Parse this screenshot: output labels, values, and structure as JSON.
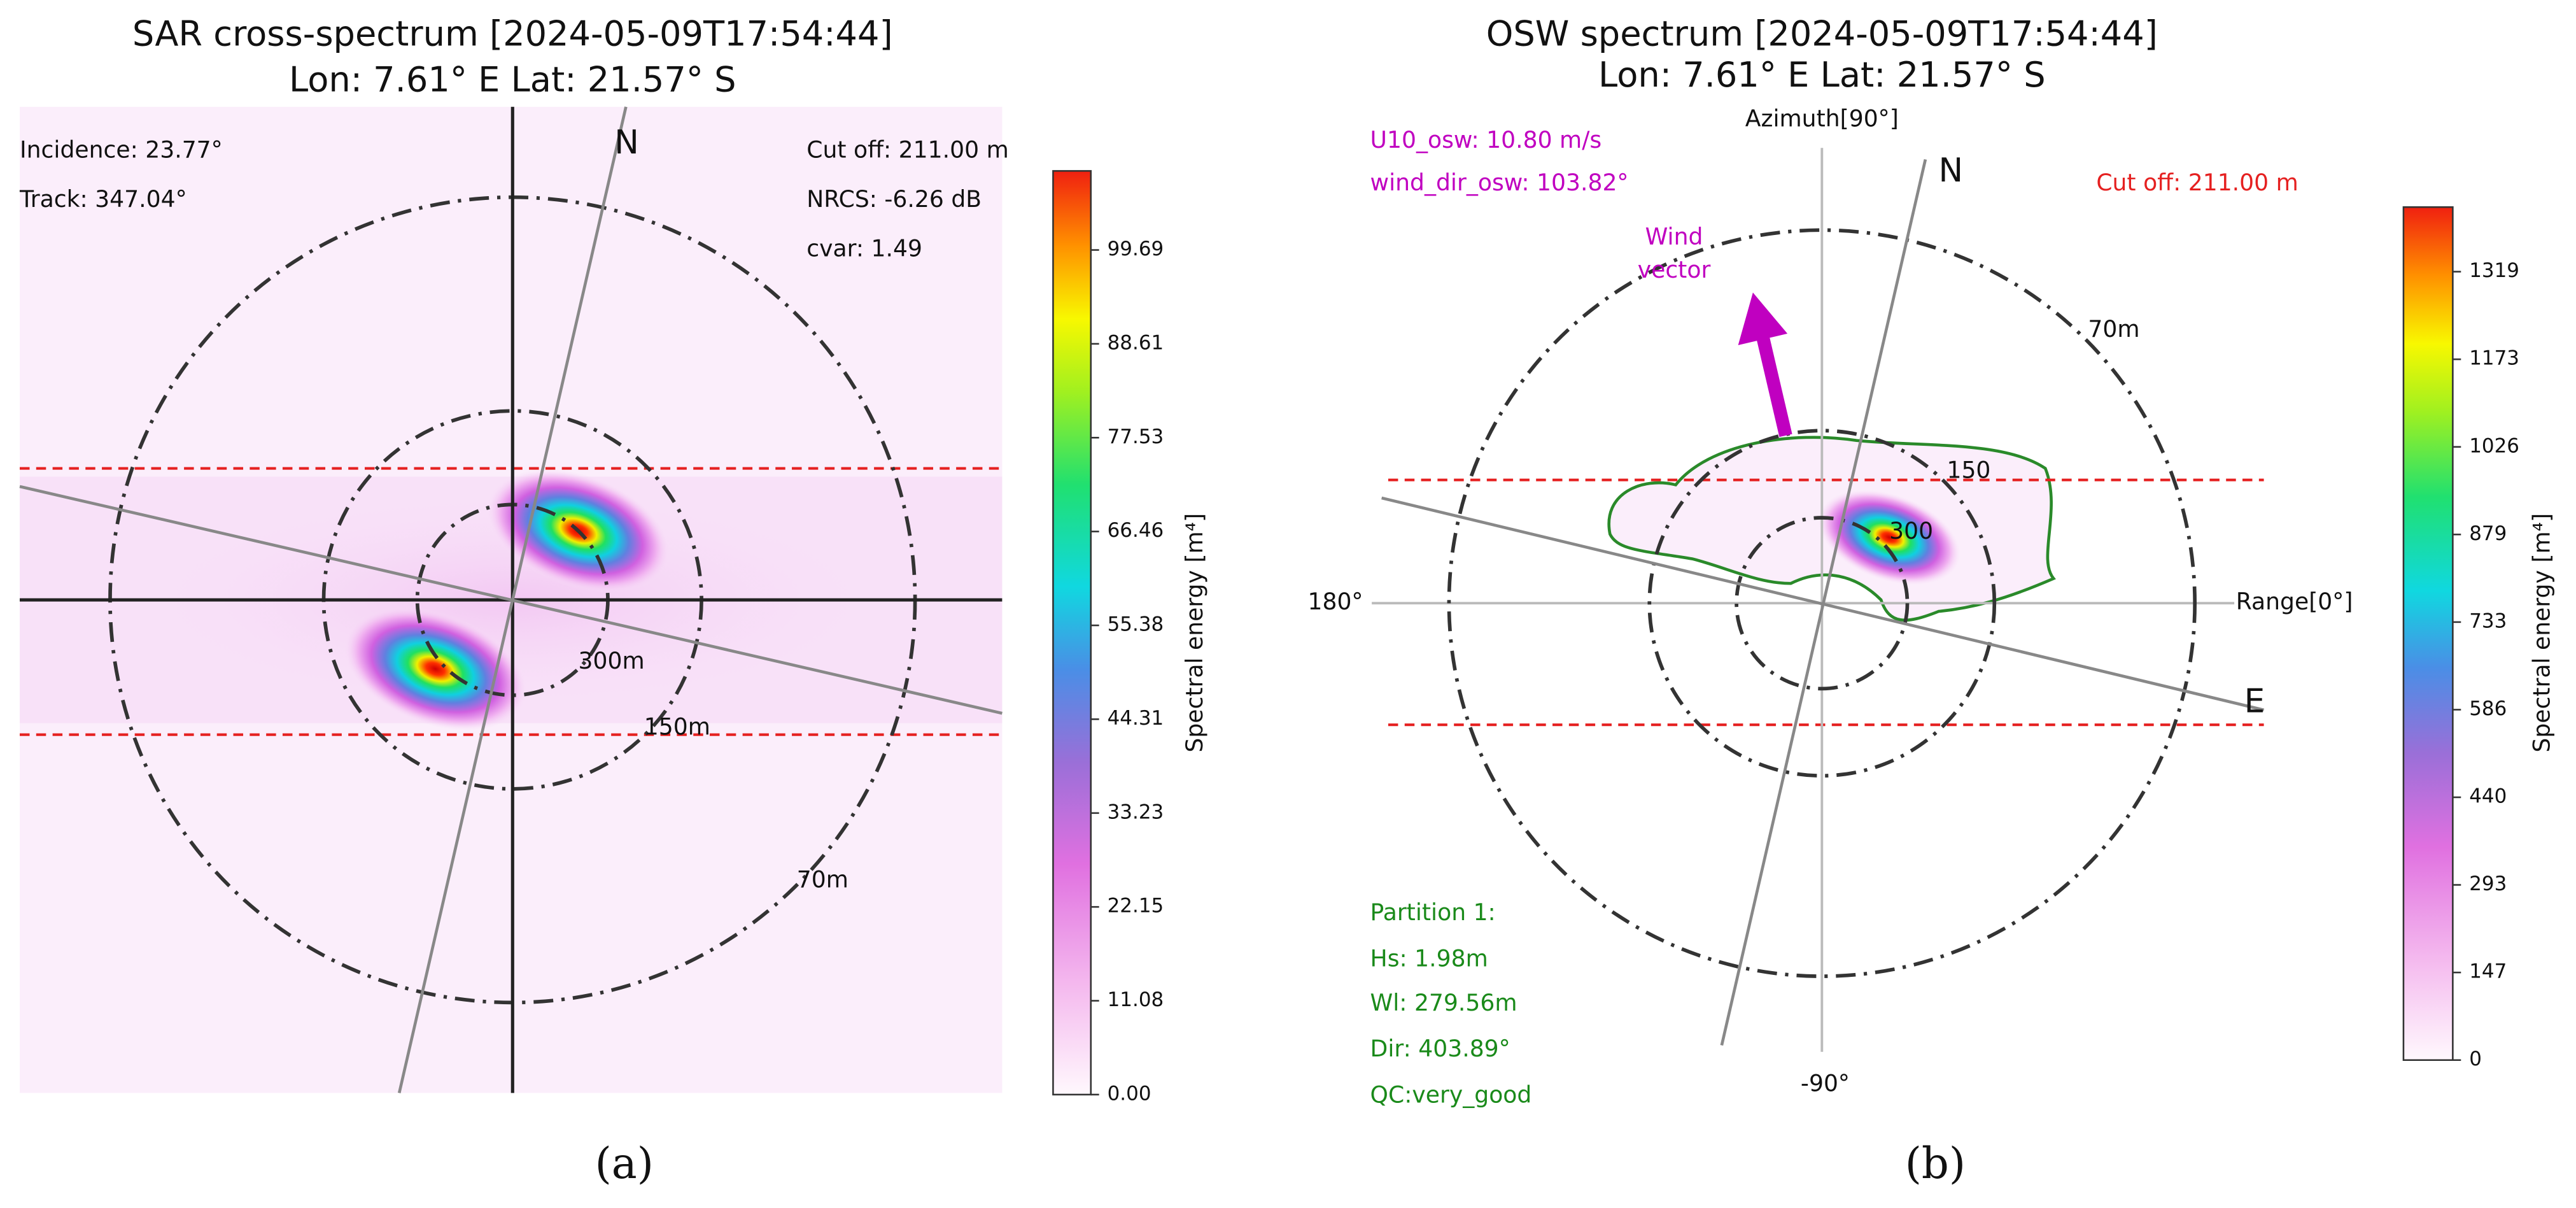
{
  "panels": [
    {
      "caption": "(a)",
      "title": [
        "SAR cross-spectrum [2024-05-09T17:54:44]",
        "Lon: 7.61° E Lat: 21.57° S"
      ],
      "info_left": [
        "Incidence: 23.77°",
        "Track: 347.04°"
      ],
      "info_right": [
        "Cut off: 211.00 m",
        "NRCS: -6.26 dB",
        "cvar: 1.49"
      ],
      "compass": [
        "N"
      ],
      "ring_labels": [
        "300m",
        "150m",
        "70m"
      ],
      "colorbar": {
        "label": "Spectral energy [m⁴]",
        "ticks": [
          "0.00",
          "11.08",
          "22.15",
          "33.23",
          "44.31",
          "55.38",
          "66.46",
          "77.53",
          "88.61",
          "99.69"
        ]
      }
    },
    {
      "caption": "(b)",
      "title": [
        "OSW spectrum [2024-05-09T17:54:44]",
        "Lon: 7.61° E Lat: 21.57° S"
      ],
      "axis_labels": {
        "top": "Azimuth[90°]",
        "left": "180°",
        "right": "Range[0°]",
        "bottom": "-90°"
      },
      "wind_info": [
        "U10_osw: 10.80 m/s",
        "wind_dir_osw: 103.82°"
      ],
      "cutoff": "Cut off: 211.00 m",
      "compass": [
        "N",
        "E"
      ],
      "wind_vector": [
        "Wind",
        "vector"
      ],
      "ring_labels": [
        "300",
        "150",
        "70m"
      ],
      "partition": {
        "title": "Partition 1:",
        "lines": [
          "Hs: 1.98m",
          "Wl: 279.56m",
          "Dir: 403.89°",
          "QC:very_good"
        ]
      },
      "colorbar": {
        "label": "Spectral energy [m⁴]",
        "ticks": [
          "0",
          "147",
          "293",
          "440",
          "586",
          "733",
          "879",
          "1026",
          "1173",
          "1319"
        ]
      }
    }
  ]
}
